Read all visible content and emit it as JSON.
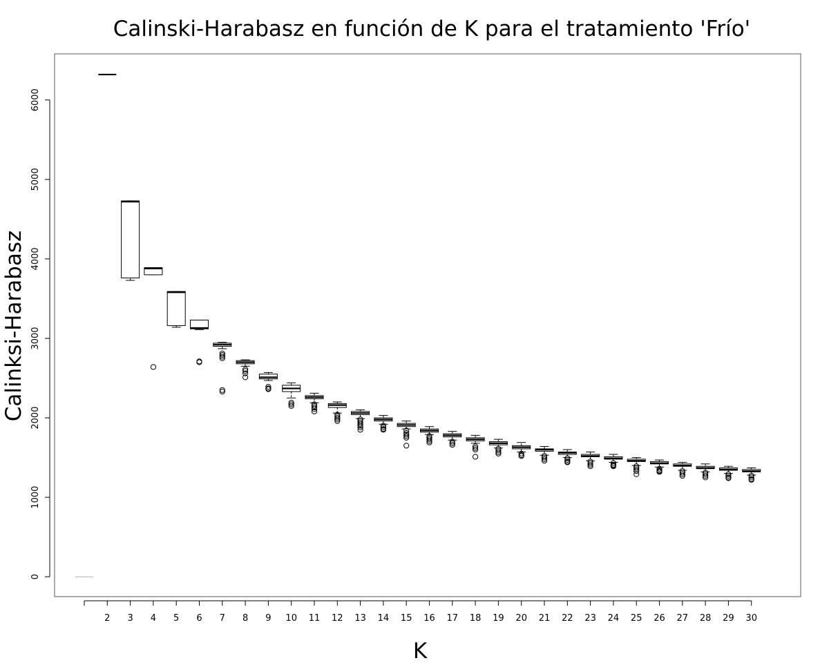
{
  "chart_data": {
    "type": "boxplot",
    "title": "Calinski-Harabasz en función de K para el tratamiento 'Frío'",
    "xlabel": "K",
    "ylabel": "Calinksi-Harabasz",
    "ylim": [
      -250,
      6580
    ],
    "yticks": [
      0,
      1000,
      2000,
      3000,
      4000,
      5000,
      6000
    ],
    "grid": false,
    "legend": "none",
    "categories": [
      "",
      "2",
      "3",
      "4",
      "5",
      "6",
      "7",
      "8",
      "9",
      "10",
      "11",
      "12",
      "13",
      "14",
      "15",
      "16",
      "17",
      "18",
      "19",
      "20",
      "21",
      "22",
      "23",
      "24",
      "25",
      "26",
      "27",
      "28",
      "29",
      "30"
    ],
    "boxes": [
      {
        "k": "",
        "min": 0,
        "q1": 0,
        "median": 0,
        "q3": 0,
        "max": 0,
        "outliers": []
      },
      {
        "k": "2",
        "min": 6320,
        "q1": 6320,
        "median": 6320,
        "q3": 6320,
        "max": 6320,
        "outliers": []
      },
      {
        "k": "3",
        "min": 3730,
        "q1": 3760,
        "median": 4720,
        "q3": 4730,
        "max": 4730,
        "outliers": []
      },
      {
        "k": "4",
        "min": 3800,
        "q1": 3800,
        "median": 3880,
        "q3": 3890,
        "max": 3890,
        "outliers": [
          2640
        ]
      },
      {
        "k": "5",
        "min": 3140,
        "q1": 3160,
        "median": 3580,
        "q3": 3590,
        "max": 3590,
        "outliers": []
      },
      {
        "k": "6",
        "min": 3110,
        "q1": 3120,
        "median": 3130,
        "q3": 3230,
        "max": 3230,
        "outliers": [
          2710,
          2700
        ]
      },
      {
        "k": "7",
        "min": 2870,
        "q1": 2900,
        "median": 2920,
        "q3": 2940,
        "max": 2950,
        "outliers": [
          2810,
          2790,
          2770,
          2750,
          2350,
          2330
        ]
      },
      {
        "k": "8",
        "min": 2650,
        "q1": 2680,
        "median": 2700,
        "q3": 2720,
        "max": 2730,
        "outliers": [
          2610,
          2590,
          2560,
          2510
        ]
      },
      {
        "k": "9",
        "min": 2470,
        "q1": 2490,
        "median": 2510,
        "q3": 2550,
        "max": 2570,
        "outliers": [
          2390,
          2370,
          2360
        ]
      },
      {
        "k": "10",
        "min": 2250,
        "q1": 2330,
        "median": 2370,
        "q3": 2410,
        "max": 2440,
        "outliers": [
          2190,
          2170,
          2150
        ]
      },
      {
        "k": "11",
        "min": 2190,
        "q1": 2240,
        "median": 2260,
        "q3": 2280,
        "max": 2310,
        "outliers": [
          2170,
          2150,
          2130,
          2110,
          2080
        ]
      },
      {
        "k": "12",
        "min": 2060,
        "q1": 2130,
        "median": 2160,
        "q3": 2180,
        "max": 2200,
        "outliers": [
          2040,
          2020,
          2000,
          1980,
          1960
        ]
      },
      {
        "k": "13",
        "min": 1990,
        "q1": 2040,
        "median": 2060,
        "q3": 2080,
        "max": 2100,
        "outliers": [
          1980,
          1960,
          1940,
          1920,
          1900,
          1880,
          1850
        ]
      },
      {
        "k": "14",
        "min": 1920,
        "q1": 1960,
        "median": 1980,
        "q3": 2000,
        "max": 2030,
        "outliers": [
          1900,
          1880,
          1860,
          1850
        ]
      },
      {
        "k": "15",
        "min": 1860,
        "q1": 1890,
        "median": 1910,
        "q3": 1930,
        "max": 1960,
        "outliers": [
          1840,
          1810,
          1790,
          1770,
          1750,
          1650
        ]
      },
      {
        "k": "16",
        "min": 1790,
        "q1": 1820,
        "median": 1840,
        "q3": 1860,
        "max": 1890,
        "outliers": [
          1770,
          1750,
          1730,
          1710,
          1690
        ]
      },
      {
        "k": "17",
        "min": 1720,
        "q1": 1760,
        "median": 1780,
        "q3": 1800,
        "max": 1830,
        "outliers": [
          1700,
          1680,
          1660
        ]
      },
      {
        "k": "18",
        "min": 1680,
        "q1": 1710,
        "median": 1730,
        "q3": 1750,
        "max": 1780,
        "outliers": [
          1640,
          1620,
          1600,
          1510
        ]
      },
      {
        "k": "19",
        "min": 1620,
        "q1": 1660,
        "median": 1680,
        "q3": 1700,
        "max": 1730,
        "outliers": [
          1610,
          1590,
          1570,
          1550
        ]
      },
      {
        "k": "20",
        "min": 1570,
        "q1": 1610,
        "median": 1630,
        "q3": 1650,
        "max": 1690,
        "outliers": [
          1550,
          1530,
          1520
        ]
      },
      {
        "k": "21",
        "min": 1530,
        "q1": 1580,
        "median": 1600,
        "q3": 1610,
        "max": 1640,
        "outliers": [
          1520,
          1500,
          1480,
          1460
        ]
      },
      {
        "k": "22",
        "min": 1500,
        "q1": 1540,
        "median": 1560,
        "q3": 1570,
        "max": 1600,
        "outliers": [
          1490,
          1470,
          1450,
          1440
        ]
      },
      {
        "k": "23",
        "min": 1460,
        "q1": 1510,
        "median": 1520,
        "q3": 1540,
        "max": 1570,
        "outliers": [
          1450,
          1430,
          1410,
          1390
        ]
      },
      {
        "k": "24",
        "min": 1440,
        "q1": 1480,
        "median": 1490,
        "q3": 1510,
        "max": 1540,
        "outliers": [
          1430,
          1410,
          1400,
          1390
        ]
      },
      {
        "k": "25",
        "min": 1400,
        "q1": 1450,
        "median": 1460,
        "q3": 1480,
        "max": 1500,
        "outliers": [
          1390,
          1370,
          1350,
          1330,
          1290
        ]
      },
      {
        "k": "26",
        "min": 1380,
        "q1": 1420,
        "median": 1430,
        "q3": 1450,
        "max": 1470,
        "outliers": [
          1360,
          1340,
          1330,
          1320
        ]
      },
      {
        "k": "27",
        "min": 1340,
        "q1": 1390,
        "median": 1400,
        "q3": 1420,
        "max": 1440,
        "outliers": [
          1330,
          1310,
          1290,
          1270
        ]
      },
      {
        "k": "28",
        "min": 1320,
        "q1": 1360,
        "median": 1370,
        "q3": 1390,
        "max": 1420,
        "outliers": [
          1310,
          1290,
          1270,
          1250
        ]
      },
      {
        "k": "29",
        "min": 1300,
        "q1": 1340,
        "median": 1350,
        "q3": 1370,
        "max": 1390,
        "outliers": [
          1290,
          1270,
          1250,
          1240
        ]
      },
      {
        "k": "30",
        "min": 1280,
        "q1": 1320,
        "median": 1330,
        "q3": 1350,
        "max": 1370,
        "outliers": [
          1270,
          1250,
          1230,
          1220
        ]
      }
    ]
  }
}
